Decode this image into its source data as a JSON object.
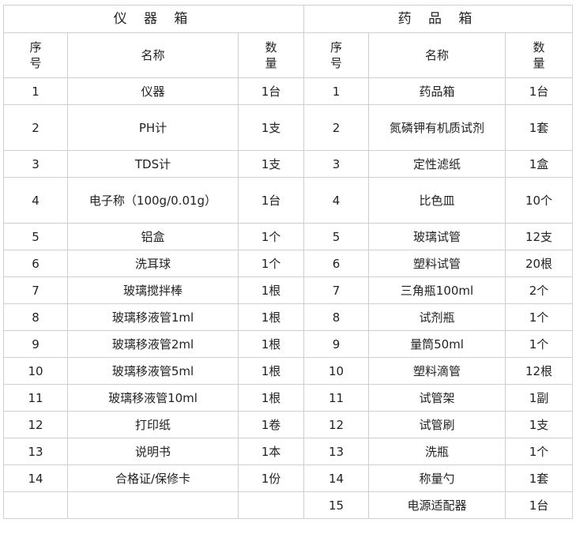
{
  "left_title": "仪 器 箱",
  "right_title": "药 品 箱",
  "headers": {
    "index": "序号",
    "name": "名称",
    "qty": "数量"
  },
  "rows": [
    {
      "l": [
        "1",
        "仪器",
        "1台"
      ],
      "r": [
        "1",
        "药品箱",
        "1台"
      ]
    },
    {
      "l": [
        "2",
        "PH计",
        "1支"
      ],
      "r": [
        "2",
        "氮磷钾有机质试剂",
        "1套"
      ]
    },
    {
      "l": [
        "3",
        "TDS计",
        "1支"
      ],
      "r": [
        "3",
        "定性滤纸",
        "1盒"
      ]
    },
    {
      "l": [
        "4",
        "电子称（100g/0.01g）",
        "1台"
      ],
      "r": [
        "4",
        "比色皿",
        "10个"
      ]
    },
    {
      "l": [
        "5",
        "铝盒",
        "1个"
      ],
      "r": [
        "5",
        "玻璃试管",
        "12支"
      ]
    },
    {
      "l": [
        "6",
        "洗耳球",
        "1个"
      ],
      "r": [
        "6",
        "塑料试管",
        "20根"
      ]
    },
    {
      "l": [
        "7",
        "玻璃搅拌棒",
        "1根"
      ],
      "r": [
        "7",
        "三角瓶100ml",
        "2个"
      ]
    },
    {
      "l": [
        "8",
        "玻璃移液管1ml",
        "1根"
      ],
      "r": [
        "8",
        "试剂瓶",
        "1个"
      ]
    },
    {
      "l": [
        "9",
        "玻璃移液管2ml",
        "1根"
      ],
      "r": [
        "9",
        "量筒50ml",
        "1个"
      ]
    },
    {
      "l": [
        "10",
        "玻璃移液管5ml",
        "1根"
      ],
      "r": [
        "10",
        "塑料滴管",
        "12根"
      ]
    },
    {
      "l": [
        "11",
        "玻璃移液管10ml",
        "1根"
      ],
      "r": [
        "11",
        "试管架",
        "1副"
      ]
    },
    {
      "l": [
        "12",
        "打印纸",
        "1卷"
      ],
      "r": [
        "12",
        "试管刷",
        "1支"
      ]
    },
    {
      "l": [
        "13",
        "说明书",
        "1本"
      ],
      "r": [
        "13",
        "洗瓶",
        "1个"
      ]
    },
    {
      "l": [
        "14",
        "合格证/保修卡",
        "1份"
      ],
      "r": [
        "14",
        "称量勺",
        "1套"
      ]
    },
    {
      "l": [
        "",
        "",
        ""
      ],
      "r": [
        "15",
        "电源适配器",
        "1台"
      ]
    }
  ]
}
